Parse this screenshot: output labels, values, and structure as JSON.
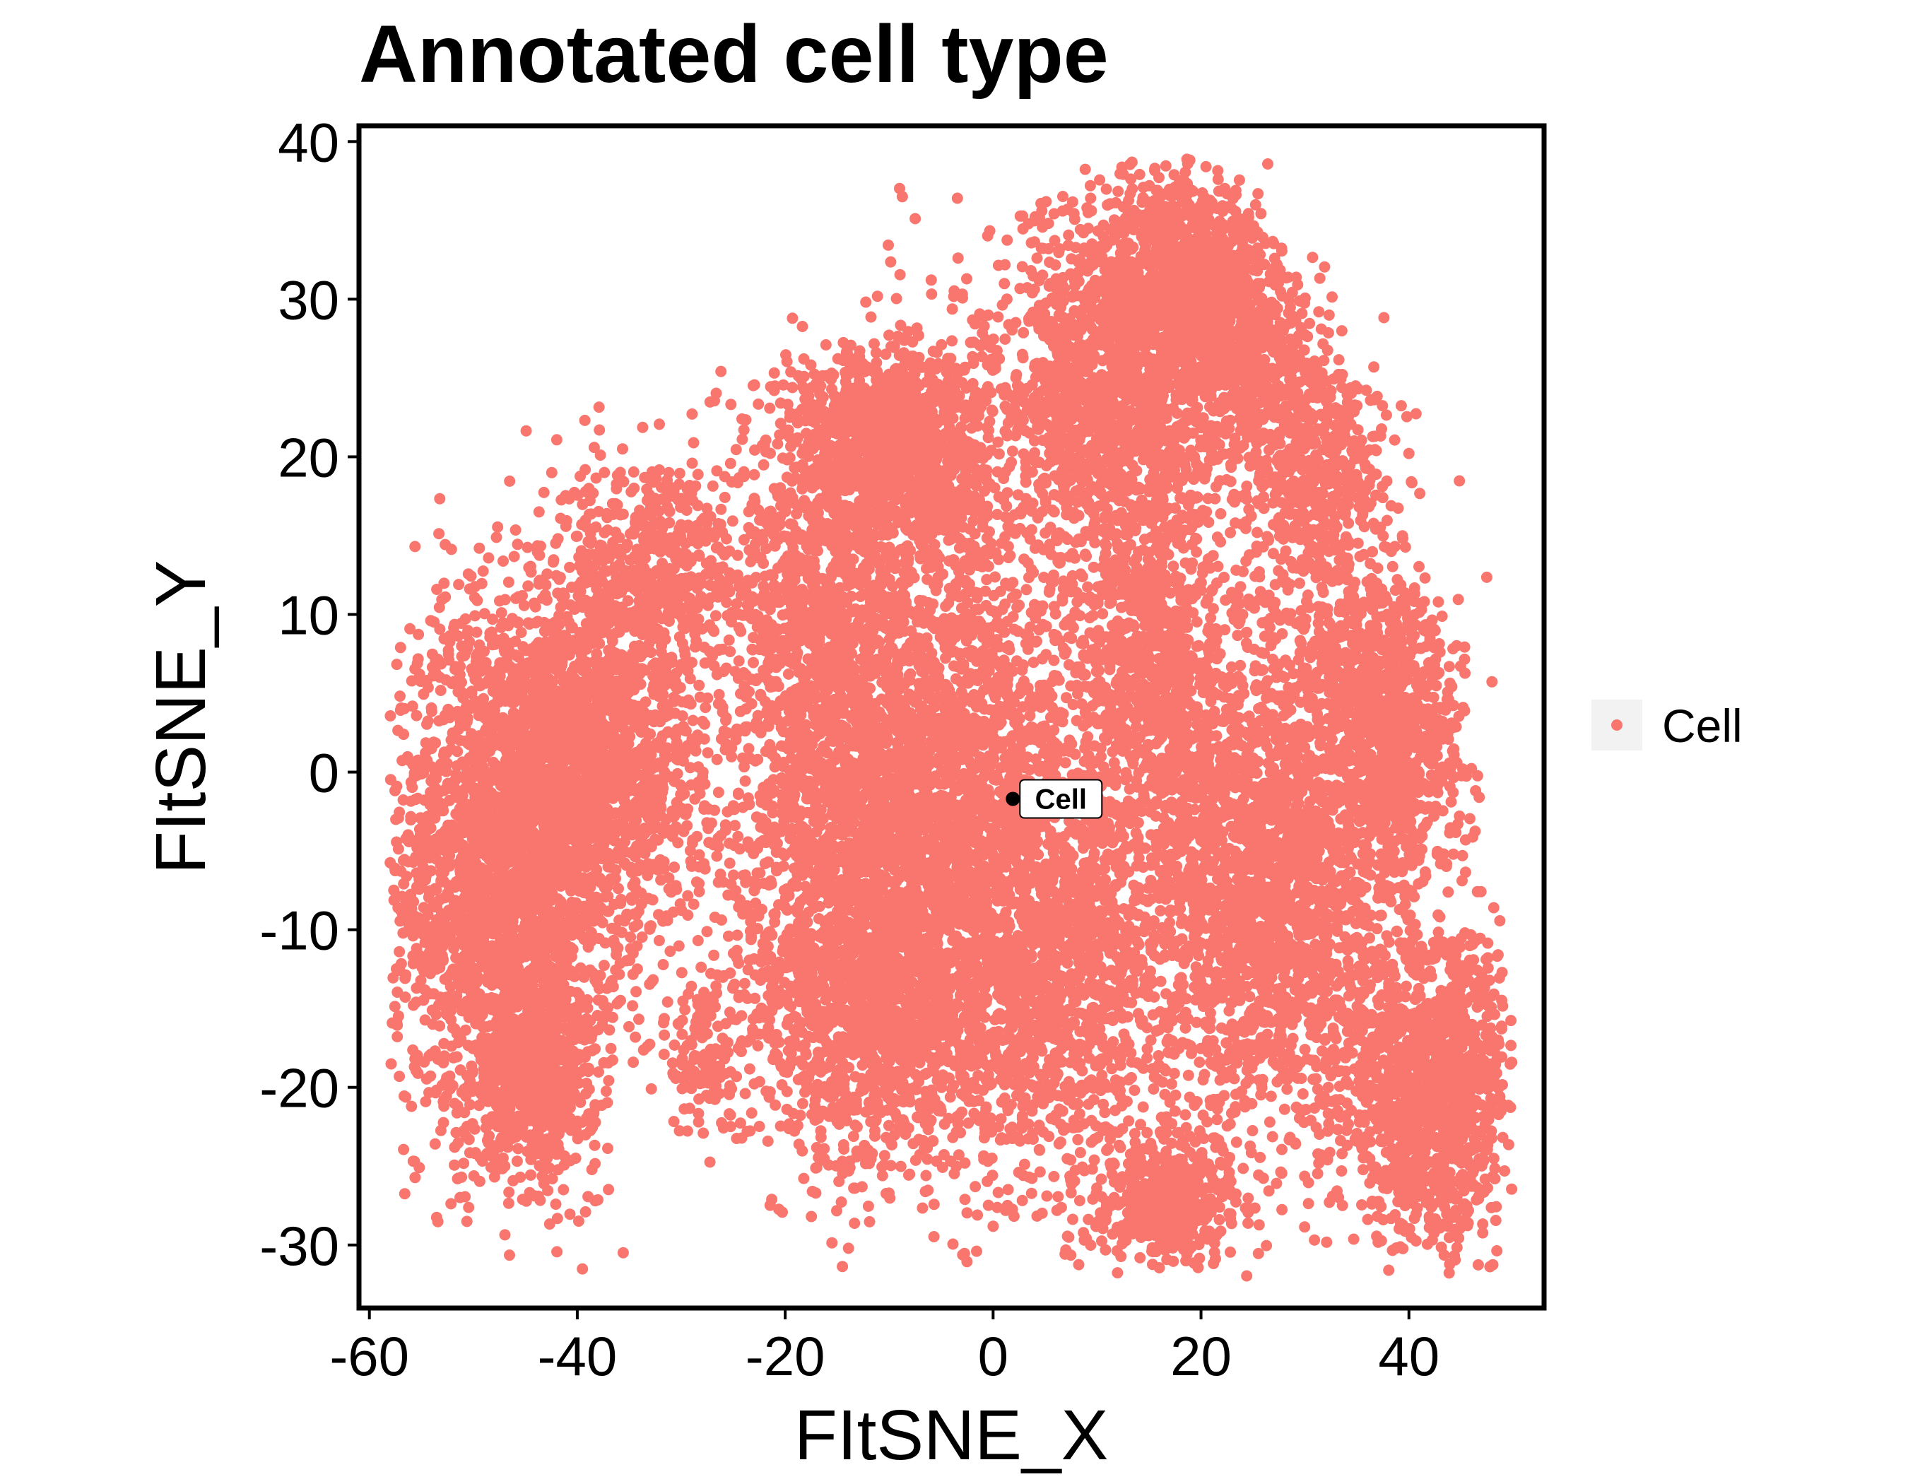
{
  "chart_data": {
    "type": "scatter",
    "title": "Annotated cell type",
    "xlabel": "FItSNE_X",
    "ylabel": "FItSNE_Y",
    "xlim": [
      -61,
      53
    ],
    "ylim": [
      -34,
      41
    ],
    "xticks": [
      -60,
      -40,
      -20,
      0,
      20,
      40
    ],
    "yticks": [
      -30,
      -20,
      -10,
      0,
      10,
      20,
      30,
      40
    ],
    "grid": false,
    "legend_position": "right",
    "series": [
      {
        "name": "Cell",
        "color": "#F8766D",
        "clusters": [
          {
            "cx": -47,
            "cy": -6,
            "sx": 5.5,
            "sy": 8.5,
            "n": 2600
          },
          {
            "cx": -38,
            "cy": 1,
            "sx": 5,
            "sy": 6,
            "n": 1400
          },
          {
            "cx": -44,
            "cy": -19,
            "sx": 3,
            "sy": 3,
            "n": 600
          },
          {
            "cx": -32,
            "cy": 13,
            "sx": 4,
            "sy": 4,
            "n": 450
          },
          {
            "cx": -28,
            "cy": -18,
            "sx": 1.5,
            "sy": 2.5,
            "n": 120
          },
          {
            "cx": -13,
            "cy": 21,
            "sx": 4,
            "sy": 3,
            "n": 700
          },
          {
            "cx": -6,
            "cy": 20,
            "sx": 3.5,
            "sy": 4,
            "n": 600
          },
          {
            "cx": -10,
            "cy": -2,
            "sx": 8,
            "sy": 8,
            "n": 2800
          },
          {
            "cx": -12,
            "cy": -16,
            "sx": 6,
            "sy": 5,
            "n": 1000
          },
          {
            "cx": 2,
            "cy": -12,
            "sx": 6,
            "sy": 8,
            "n": 900
          },
          {
            "cx": -18,
            "cy": 12,
            "sx": 4,
            "sy": 4,
            "n": 400
          },
          {
            "cx": 12,
            "cy": 24,
            "sx": 6,
            "sy": 6,
            "n": 1700
          },
          {
            "cx": 19,
            "cy": 32,
            "sx": 4,
            "sy": 3,
            "n": 700
          },
          {
            "cx": 24,
            "cy": 27,
            "sx": 3,
            "sy": 3,
            "n": 400
          },
          {
            "cx": 31,
            "cy": 19,
            "sx": 3.5,
            "sy": 4,
            "n": 600
          },
          {
            "cx": 16,
            "cy": 7,
            "sx": 3.5,
            "sy": 5,
            "n": 700
          },
          {
            "cx": 26,
            "cy": -7,
            "sx": 6,
            "sy": 8,
            "n": 2200
          },
          {
            "cx": 36,
            "cy": 6,
            "sx": 3.5,
            "sy": 3.5,
            "n": 500
          },
          {
            "cx": 39,
            "cy": 0,
            "sx": 3,
            "sy": 4,
            "n": 500
          },
          {
            "cx": 42,
            "cy": -20,
            "sx": 4,
            "sy": 5,
            "n": 1300
          },
          {
            "cx": 17,
            "cy": -27,
            "sx": 3.5,
            "sy": 2,
            "n": 450
          },
          {
            "cx": 8,
            "cy": -12,
            "sx": 5,
            "sy": 6,
            "n": 700
          },
          {
            "cx": 0,
            "cy": 5,
            "sx": 10,
            "sy": 10,
            "n": 800
          }
        ]
      }
    ],
    "annotations": [
      {
        "label": "Cell",
        "x": 1.9,
        "y": -1.7
      }
    ]
  }
}
